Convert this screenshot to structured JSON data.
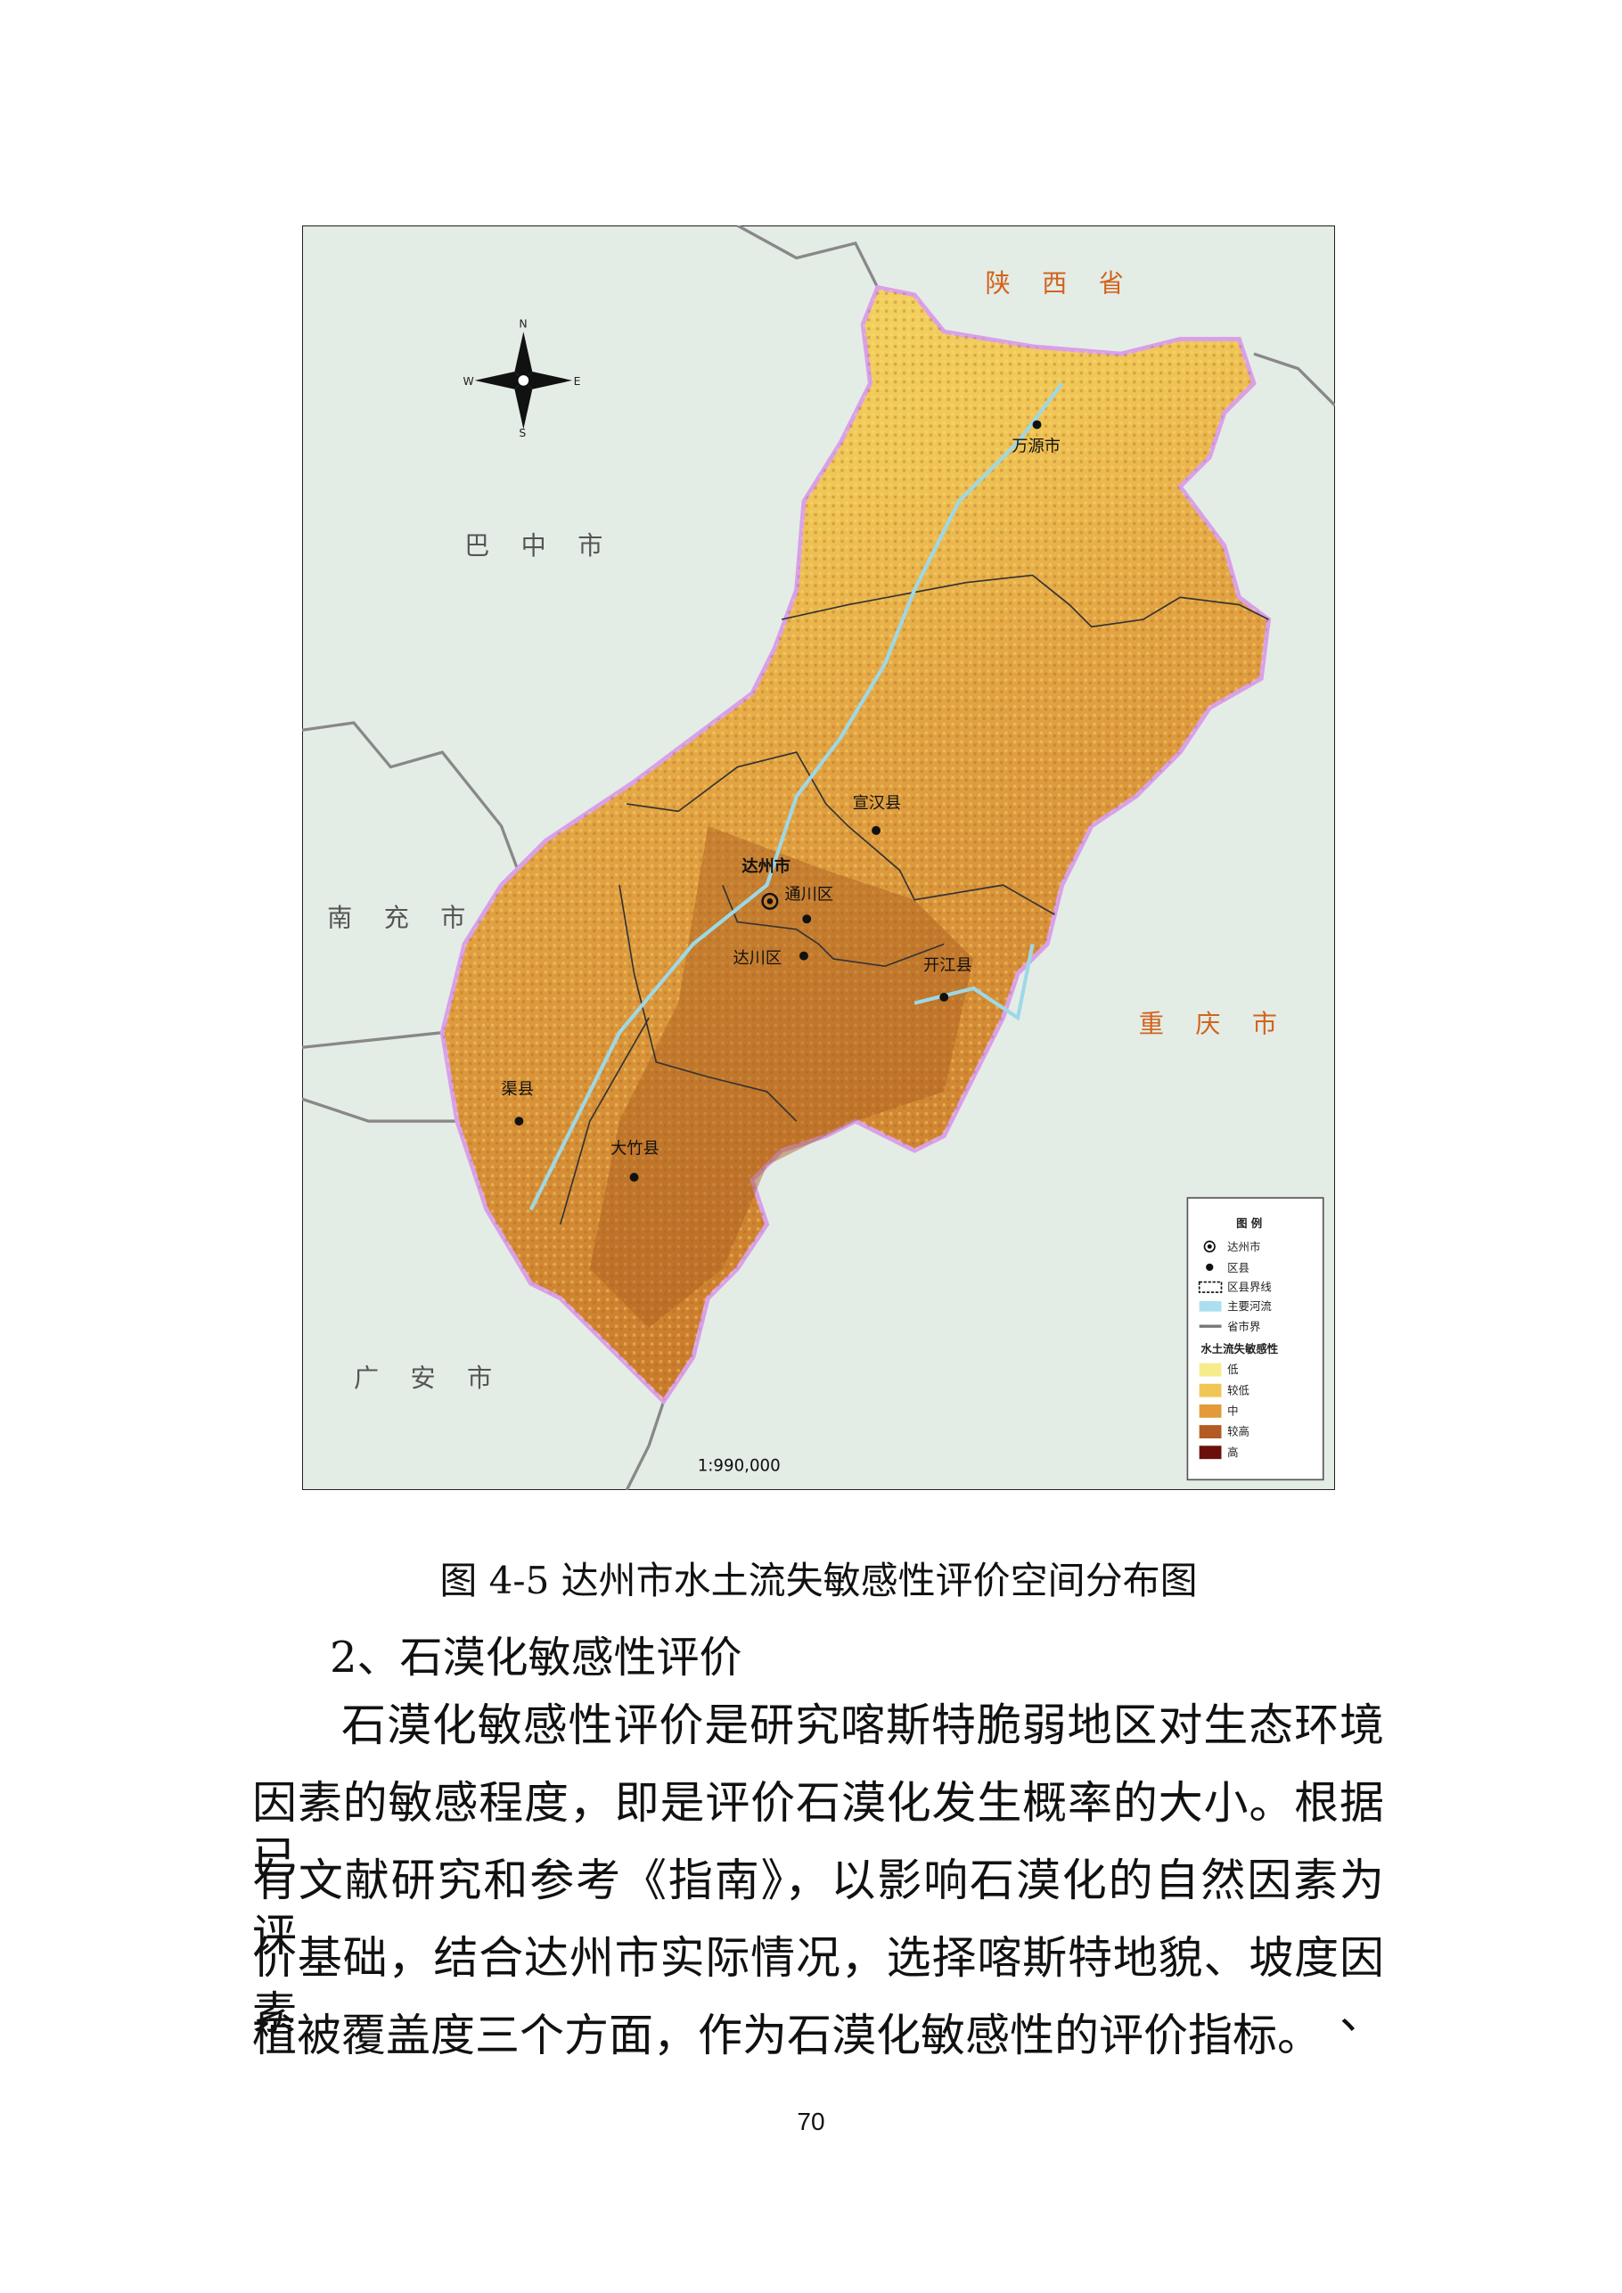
{
  "map": {
    "neighbors": [
      "陕 西 省",
      "巴 中 市",
      "南 充 市",
      "广 安 市",
      "重 庆 市"
    ],
    "city": "达州市",
    "towns": [
      "万源市",
      "宣汉县",
      "通川区",
      "达川区",
      "开江县",
      "渠县",
      "大竹县"
    ],
    "compass": [
      "N",
      "S",
      "W",
      "E"
    ],
    "scale": "1:990,000",
    "legend": {
      "title": "图 例",
      "symbols": [
        "达州市",
        "区县",
        "区县界线",
        "主要河流",
        "省市界"
      ],
      "classes_title": "水土流失敏感性",
      "classes": [
        "低",
        "较低",
        "中",
        "较高",
        "高"
      ]
    }
  },
  "caption": "图 4-5  达州市水土流失敏感性评价空间分布图",
  "heading": "2、石漠化敏感性评价",
  "paragraph": [
    "石漠化敏感性评价是研究喀斯特脆弱地区对生态环境",
    "因素的敏感程度，即是评价石漠化发生概率的大小。根据已",
    "有文献研究和参考《指南》，以影响石漠化的自然因素为评",
    "价基础，结合达州市实际情况，选择喀斯特地貌、坡度因素、",
    "植被覆盖度三个方面，作为石漠化敏感性的评价指标。"
  ],
  "page_number": "70"
}
